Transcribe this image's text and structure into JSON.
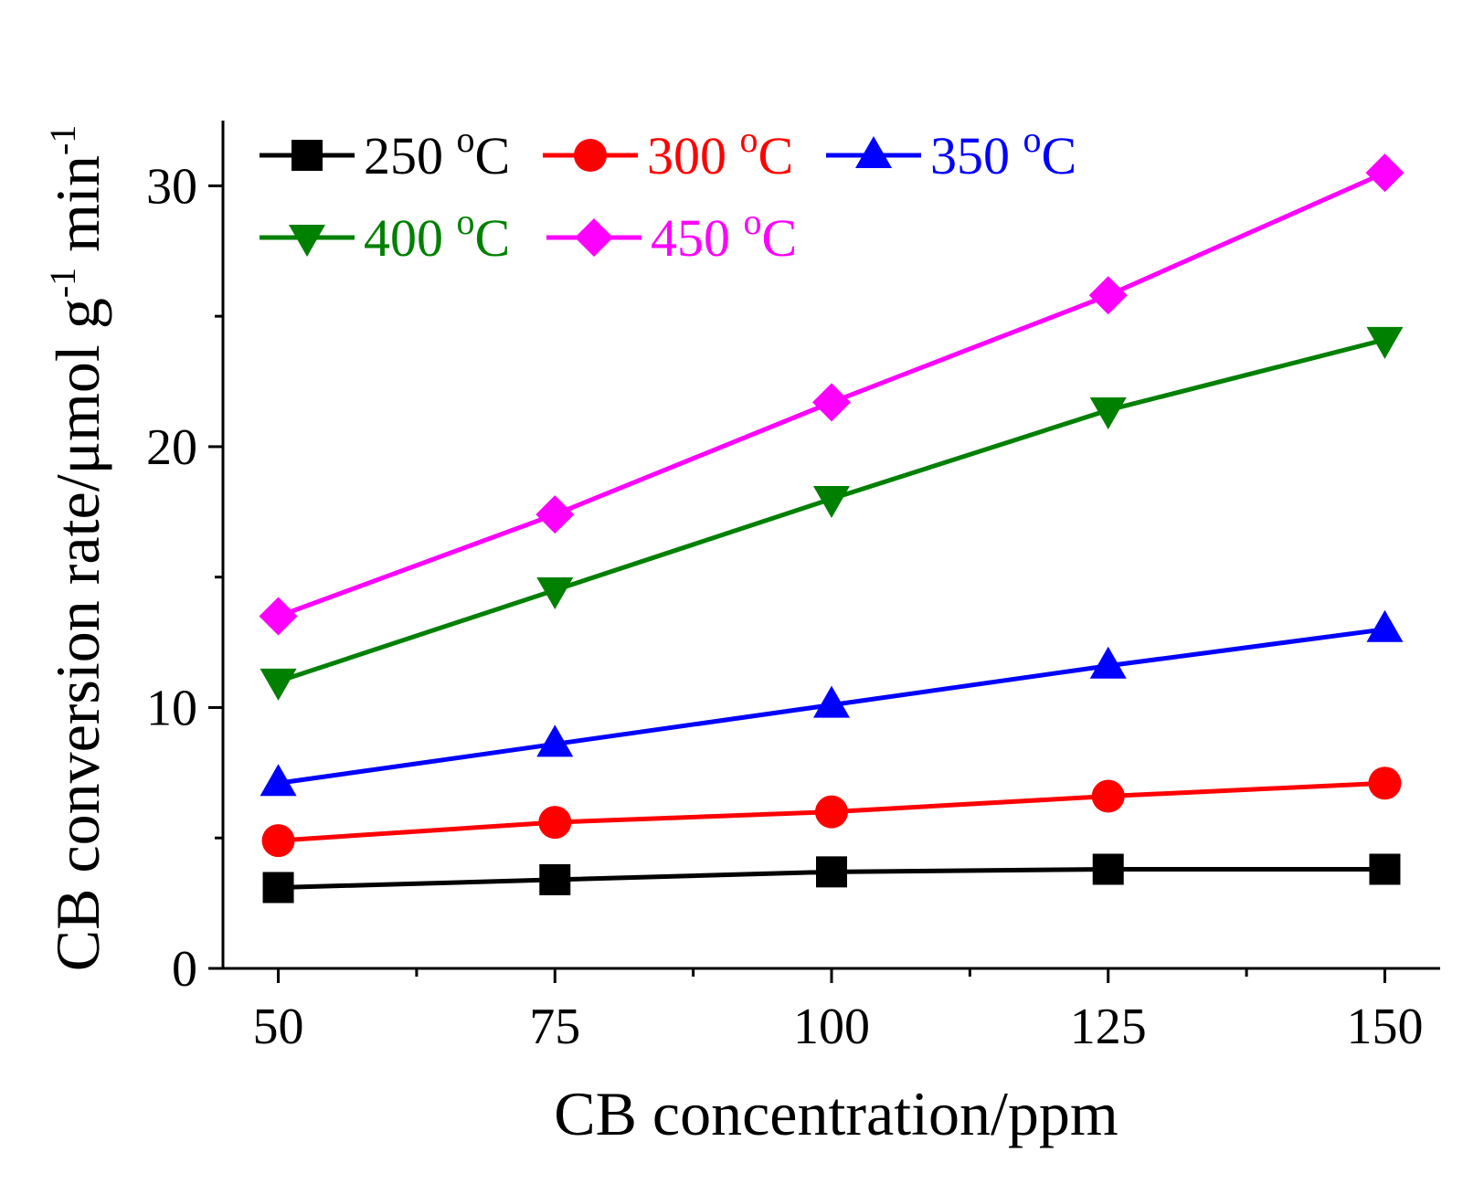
{
  "chart_data": {
    "type": "line",
    "title": "",
    "xlabel": "CB concentration/ppm",
    "ylabel": {
      "prefix": "CB conversion rate/μmol g",
      "sup1": "-1",
      "middle": " min",
      "sup2": "-1"
    },
    "x": [
      50,
      75,
      100,
      125,
      150
    ],
    "xlim": [
      45,
      155
    ],
    "ylim": [
      0,
      32.5
    ],
    "x_ticks": [
      "50",
      "75",
      "100",
      "125",
      "150"
    ],
    "x_tick_values": [
      50,
      75,
      100,
      125,
      150
    ],
    "x_minor_ticks": [
      62.5,
      87.5,
      112.5,
      137.5
    ],
    "y_ticks": [
      "0",
      "10",
      "20",
      "30"
    ],
    "y_tick_values": [
      0,
      10,
      20,
      30
    ],
    "y_minor_ticks": [
      5,
      15,
      25
    ],
    "legend_position": "top-left",
    "series": [
      {
        "name": "250",
        "unit": "C",
        "deg": "o",
        "color": "#000000",
        "marker": "square",
        "values": [
          3.1,
          3.4,
          3.7,
          3.8,
          3.8
        ]
      },
      {
        "name": "300",
        "unit": "C",
        "deg": "o",
        "color": "#ff0000",
        "marker": "circle",
        "values": [
          4.9,
          5.6,
          6.0,
          6.6,
          7.1
        ]
      },
      {
        "name": "350",
        "unit": "C",
        "deg": "o",
        "color": "#0000ff",
        "marker": "triangle-up",
        "values": [
          7.1,
          8.6,
          10.1,
          11.6,
          13.0
        ]
      },
      {
        "name": "400",
        "unit": "C",
        "deg": "o",
        "color": "#008000",
        "marker": "triangle-down",
        "values": [
          11.0,
          14.5,
          18.0,
          21.4,
          24.1
        ]
      },
      {
        "name": "450",
        "unit": "C",
        "deg": "o",
        "color": "#ff00ff",
        "marker": "diamond",
        "values": [
          13.5,
          17.4,
          21.7,
          25.8,
          30.5
        ]
      }
    ]
  }
}
